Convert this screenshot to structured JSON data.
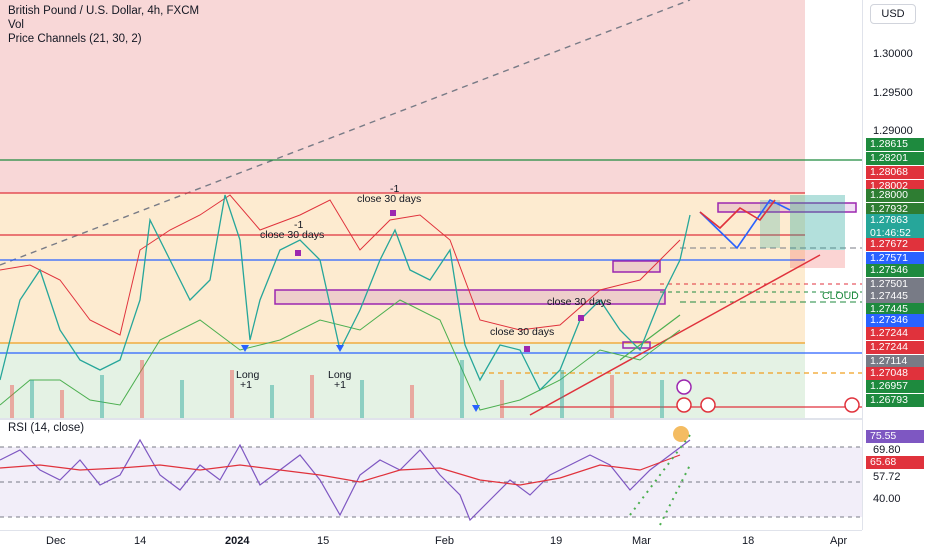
{
  "header": {
    "title": "British Pound / U.S. Dollar, 4h, FXCM",
    "vol": "Vol",
    "indicator": "Price Channels (21, 30, 2)"
  },
  "currency": "USD",
  "price_axis": {
    "labels": [
      "1.30000",
      "1.29500",
      "1.29000"
    ]
  },
  "price_pills": [
    {
      "text": "1.28615",
      "color": "#1e8a3e"
    },
    {
      "text": "1.28201",
      "color": "#1e8a3e"
    },
    {
      "text": "1.28068",
      "color": "#e0323c"
    },
    {
      "text": "1.28002",
      "color": "#e0323c"
    },
    {
      "text": "1.28000",
      "color": "#2e7d32"
    },
    {
      "text": "1.27932",
      "color": "#2e7d32"
    },
    {
      "text": "1.27863",
      "color": "#26a69a"
    },
    {
      "text": "01:46:52",
      "color": "#26a69a"
    },
    {
      "text": "1.27672",
      "color": "#e0323c"
    },
    {
      "text": "1.27571",
      "color": "#2962ff"
    },
    {
      "text": "1.27546",
      "color": "#1e8a3e"
    },
    {
      "text": "1.27501",
      "color": "#787b86"
    },
    {
      "text": "1.27445",
      "color": "#787b86"
    },
    {
      "text": "1.27445",
      "color": "#1e8a3e"
    },
    {
      "text": "1.27346",
      "color": "#2962ff"
    },
    {
      "text": "1.27244",
      "color": "#e0323c"
    },
    {
      "text": "1.27244",
      "color": "#e0323c"
    },
    {
      "text": "1.27114",
      "color": "#787b86"
    },
    {
      "text": "1.27048",
      "color": "#e0323c"
    },
    {
      "text": "1.26957",
      "color": "#1e8a3e"
    },
    {
      "text": "1.26793",
      "color": "#1e8a3e"
    }
  ],
  "annotations": {
    "close30_a": "close 30 days",
    "close30_b": "close 30 days",
    "close30_c": "close 30 days",
    "close30_d": "close 30 days",
    "minus1_a": "-1",
    "minus1_b": "-1",
    "long_a": "Long",
    "long_a2": "+1",
    "long_b": "Long",
    "long_b2": "+1",
    "cloud": "CLOUD"
  },
  "rsi": {
    "title": "RSI (14, close)",
    "labels": [
      "69.80",
      "57.72",
      "40.00"
    ],
    "pill_a": "75.55",
    "pill_b": "65.68",
    "pill_a_color": "#7e57c2",
    "pill_b_color": "#e0323c"
  },
  "time_axis": {
    "ticks": [
      "Dec",
      "14",
      "2024",
      "15",
      "Feb",
      "19",
      "Mar",
      "18",
      "Apr"
    ]
  }
}
